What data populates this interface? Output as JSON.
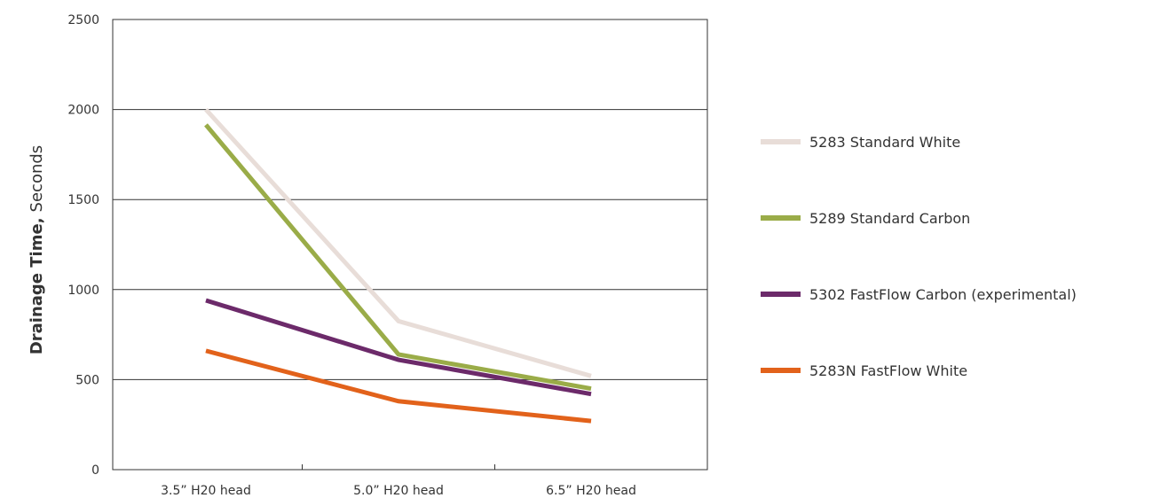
{
  "chart_data": {
    "type": "line",
    "categories": [
      "3.5” H20 head",
      "5.0” H20 head",
      "6.5” H20 head"
    ],
    "ylabel_bold": "Drainage Time,",
    "ylabel_light": "Seconds",
    "ylim": [
      0,
      2500
    ],
    "yticks": [
      0,
      500,
      1000,
      1500,
      2000,
      2500
    ],
    "ytick_labels": [
      "0",
      "500",
      "1000",
      "1500",
      "2000",
      "2500"
    ],
    "grid": true,
    "legend_position": "right",
    "series": [
      {
        "name": "5283 Standard White",
        "color": "#e8ddd8",
        "values": [
          2000,
          825,
          520
        ]
      },
      {
        "name": "5289 Standard Carbon",
        "color": "#9aac48",
        "values": [
          1915,
          640,
          450
        ]
      },
      {
        "name": "5302 FastFlow Carbon (experimental)",
        "color": "#6c2a6a",
        "values": [
          940,
          610,
          420
        ]
      },
      {
        "name": "5283N FastFlow White",
        "color": "#e2621b",
        "values": [
          660,
          380,
          270
        ]
      }
    ]
  }
}
